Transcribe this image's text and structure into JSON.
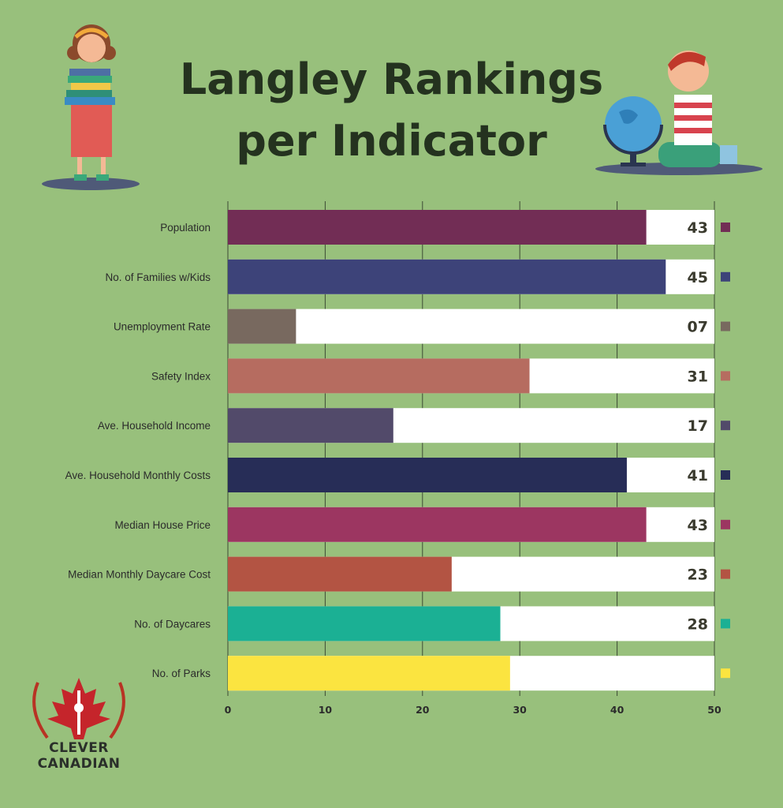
{
  "title_line1": "Langley Rankings",
  "title_line2": "per Indicator",
  "logo": {
    "line1": "CLEVER",
    "line2": "CANADIAN"
  },
  "colors": {
    "background": "#98c07c",
    "bar_background": "#ffffff",
    "title": "#24321f"
  },
  "chart_data": {
    "type": "bar",
    "orientation": "horizontal",
    "title": "Langley Rankings per Indicator",
    "xlim": [
      0,
      50
    ],
    "xticks": [
      0,
      10,
      20,
      30,
      40,
      50
    ],
    "grid": true,
    "categories": [
      "Population",
      "No. of Families w/Kids",
      "Unemployment Rate",
      "Safety Index",
      "Ave. Household Income",
      "Ave. Household Monthly Costs",
      "Median House Price",
      "Median Monthly Daycare Cost",
      "No. of Daycares",
      "No. of Parks"
    ],
    "values": [
      43,
      45,
      7,
      31,
      17,
      41,
      43,
      23,
      28,
      29
    ],
    "value_labels": [
      "43",
      "45",
      "07",
      "31",
      "17",
      "41",
      "43",
      "23",
      "28",
      ""
    ],
    "colors": [
      "#722d55",
      "#3d4379",
      "#78695f",
      "#b66c60",
      "#524a6a",
      "#272d57",
      "#9c3661",
      "#b35443",
      "#1bb094",
      "#fbe440"
    ]
  }
}
